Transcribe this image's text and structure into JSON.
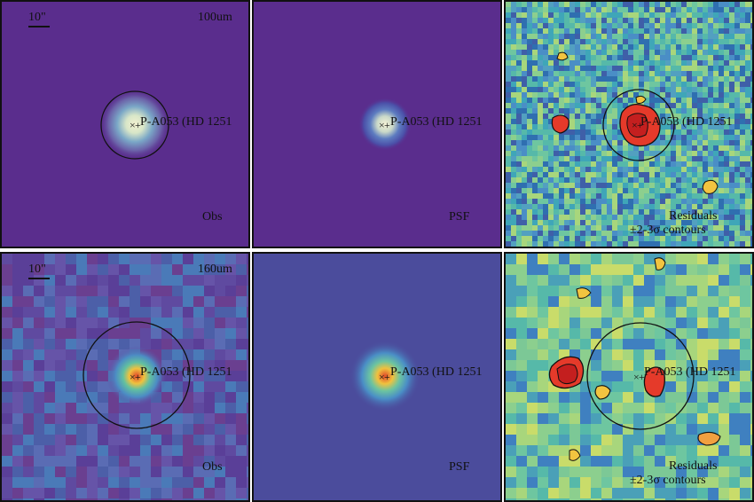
{
  "source_name": "P-A053 (HD 1251",
  "scale_label": "10\"",
  "residual_label": "Residuals",
  "contour_label": "±2-3σ contours",
  "rows": [
    {
      "band": "100um",
      "panels": [
        {
          "kind": "obs",
          "label": "Obs",
          "show_band": true,
          "show_scale": true
        },
        {
          "kind": "psf",
          "label": "PSF",
          "show_band": false,
          "show_scale": false
        },
        {
          "kind": "res",
          "label": "",
          "show_band": false,
          "show_scale": false
        }
      ]
    },
    {
      "band": "160um",
      "panels": [
        {
          "kind": "obs",
          "label": "Obs",
          "show_band": true,
          "show_scale": true
        },
        {
          "kind": "psf",
          "label": "PSF",
          "show_band": false,
          "show_scale": false
        },
        {
          "kind": "res",
          "label": "",
          "show_band": false,
          "show_scale": false
        }
      ]
    }
  ],
  "colors": {
    "obs_background": "#5b2d8a",
    "res_background": "#59b7a8",
    "contour": "#111111"
  }
}
